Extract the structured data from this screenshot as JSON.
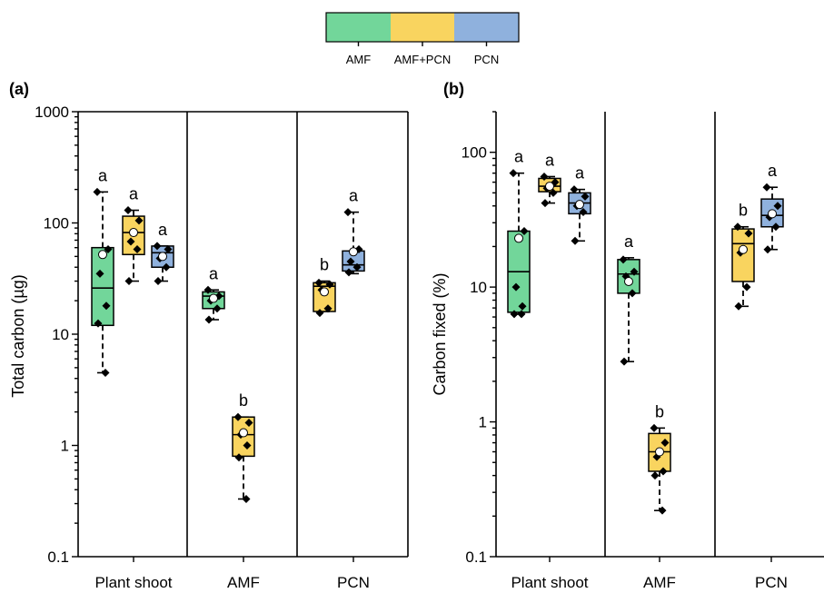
{
  "colors": {
    "AMF": "#72d69a",
    "AMF+PCN": "#f9d45f",
    "PCN": "#8fb1dd"
  },
  "legend": {
    "entries": [
      {
        "label": "AMF",
        "color": "#72d69a"
      },
      {
        "label": "AMF+PCN",
        "color": "#f9d45f"
      },
      {
        "label": "PCN",
        "color": "#8fb1dd"
      }
    ]
  },
  "chart_data": [
    {
      "type": "box",
      "panel_label": "(a)",
      "ylabel": "Total carbon (µg)",
      "yscale": "log",
      "ylim": [
        0.1,
        1000
      ],
      "yticks": [
        0.1,
        1,
        10,
        100,
        1000
      ],
      "ytick_labels": [
        "0.1",
        "1",
        "10",
        "100",
        "1000"
      ],
      "categories": [
        "Plant shoot",
        "AMF",
        "PCN"
      ],
      "series_names": [
        "AMF",
        "AMF+PCN",
        "PCN"
      ],
      "boxes": [
        {
          "category": "Plant shoot",
          "series": "AMF",
          "q1": 12,
          "median": 26,
          "q3": 60,
          "whisker_low": 4.5,
          "whisker_high": 190,
          "mean": 52,
          "points": [
            190,
            58,
            35,
            18,
            12.5,
            4.5
          ],
          "letter": "a"
        },
        {
          "category": "Plant shoot",
          "series": "AMF+PCN",
          "q1": 52,
          "median": 82,
          "q3": 115,
          "whisker_low": 30,
          "whisker_high": 130,
          "mean": 82,
          "points": [
            130,
            105,
            68,
            58,
            30
          ],
          "letter": "a"
        },
        {
          "category": "Plant shoot",
          "series": "PCN",
          "q1": 40,
          "median": 54,
          "q3": 62,
          "whisker_low": 30,
          "whisker_high": 62,
          "mean": 50,
          "points": [
            62,
            58,
            48,
            40,
            30
          ],
          "letter": "a"
        },
        {
          "category": "AMF",
          "series": "AMF",
          "q1": 17,
          "median": 22,
          "q3": 24,
          "whisker_low": 13.5,
          "whisker_high": 25,
          "mean": 21,
          "points": [
            25,
            22,
            20,
            17,
            13.5
          ],
          "letter": "a"
        },
        {
          "category": "AMF",
          "series": "AMF+PCN",
          "q1": 0.8,
          "median": 1.25,
          "q3": 1.8,
          "whisker_low": 0.33,
          "whisker_high": 1.8,
          "mean": 1.3,
          "points": [
            1.8,
            1.6,
            1.25,
            1.0,
            0.78,
            0.33
          ],
          "letter": "b"
        },
        {
          "category": "PCN",
          "series": "AMF+PCN",
          "q1": 16,
          "median": 27,
          "q3": 29,
          "whisker_low": 16,
          "whisker_high": 30,
          "mean": 24,
          "points": [
            29,
            28,
            25,
            17,
            15.5
          ],
          "letter": "b"
        },
        {
          "category": "PCN",
          "series": "PCN",
          "q1": 37,
          "median": 42,
          "q3": 56,
          "whisker_low": 35,
          "whisker_high": 125,
          "mean": 55,
          "points": [
            125,
            58,
            45,
            40,
            36
          ],
          "letter": "a"
        }
      ]
    },
    {
      "type": "box",
      "panel_label": "(b)",
      "ylabel": "Carbon fixed (%)",
      "yscale": "log",
      "ylim": [
        0.1,
        200
      ],
      "yticks": [
        0.1,
        1,
        10,
        100
      ],
      "ytick_labels": [
        "0.1",
        "1",
        "10",
        "100"
      ],
      "categories": [
        "Plant shoot",
        "AMF",
        "PCN"
      ],
      "series_names": [
        "AMF",
        "AMF+PCN",
        "PCN"
      ],
      "boxes": [
        {
          "category": "Plant shoot",
          "series": "AMF",
          "q1": 6.5,
          "median": 13,
          "q3": 26,
          "whisker_low": 6.3,
          "whisker_high": 70,
          "mean": 23,
          "points": [
            70,
            26,
            10,
            7.2,
            6.3,
            6.3
          ],
          "letter": "a"
        },
        {
          "category": "Plant shoot",
          "series": "AMF+PCN",
          "q1": 51,
          "median": 56,
          "q3": 64,
          "whisker_low": 42,
          "whisker_high": 66,
          "mean": 56,
          "points": [
            66,
            60,
            54,
            50,
            42
          ],
          "letter": "a"
        },
        {
          "category": "Plant shoot",
          "series": "PCN",
          "q1": 35,
          "median": 42,
          "q3": 50,
          "whisker_low": 22,
          "whisker_high": 53,
          "mean": 41,
          "points": [
            53,
            47,
            40,
            36,
            22
          ],
          "letter": "a"
        },
        {
          "category": "AMF",
          "series": "AMF",
          "q1": 9,
          "median": 12.5,
          "q3": 16,
          "whisker_low": 2.8,
          "whisker_high": 16.5,
          "mean": 11,
          "points": [
            16,
            13,
            12,
            9,
            2.8
          ],
          "letter": "a"
        },
        {
          "category": "AMF",
          "series": "AMF+PCN",
          "q1": 0.43,
          "median": 0.6,
          "q3": 0.82,
          "whisker_low": 0.22,
          "whisker_high": 0.9,
          "mean": 0.6,
          "points": [
            0.9,
            0.7,
            0.55,
            0.43,
            0.4,
            0.22
          ],
          "letter": "b"
        },
        {
          "category": "PCN",
          "series": "AMF+PCN",
          "q1": 11,
          "median": 21,
          "q3": 27,
          "whisker_low": 7.2,
          "whisker_high": 28,
          "mean": 19,
          "points": [
            28,
            25,
            18,
            10,
            7.2
          ],
          "letter": "b"
        },
        {
          "category": "PCN",
          "series": "PCN",
          "q1": 28,
          "median": 34,
          "q3": 45,
          "whisker_low": 19,
          "whisker_high": 55,
          "mean": 35,
          "points": [
            55,
            40,
            33,
            28,
            19
          ],
          "letter": "a"
        }
      ]
    }
  ]
}
